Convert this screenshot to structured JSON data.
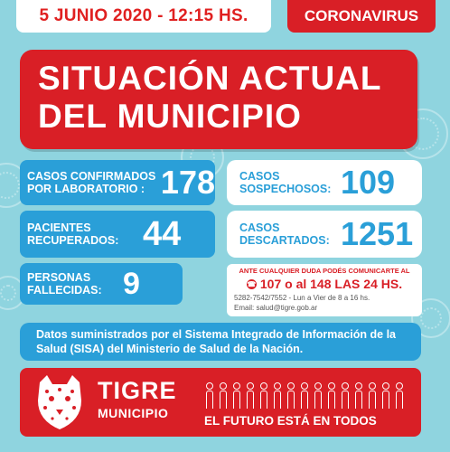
{
  "header": {
    "date": "5 JUNIO 2020 - 12:15 HS.",
    "topic": "CORONAVIRUS"
  },
  "title": {
    "line1": "SITUACIÓN ACTUAL",
    "line2": "DEL MUNICIPIO"
  },
  "stats": {
    "confirmados": {
      "label": "CASOS CONFIRMADOS\nPOR LABORATORIO :",
      "value": "178"
    },
    "recuperados": {
      "label": "PACIENTES\nRECUPERADOS:",
      "value": "44"
    },
    "fallecidas": {
      "label": "PERSONAS\nFALLECIDAS:",
      "value": "9"
    },
    "sospechosos": {
      "label": "CASOS\nSOSPECHOSOS:",
      "value": "109"
    },
    "descartados": {
      "label": "CASOS\nDESCARTADOS:",
      "value": "1251"
    }
  },
  "info": {
    "intro": "ANTE CUALQUIER DUDA PODÉS COMUNICARTE AL",
    "phones": "107 o al 148 LAS 24 HS.",
    "alt_phone": "5282-7542/7552 - Lun a Vier de 8 a 16 hs.",
    "email": "Email: salud@tigre.gob.ar"
  },
  "source": "Datos suministrados por el Sistema Integrado de Información de la Salud (SISA) del Ministerio de Salud de la Nación.",
  "footer": {
    "brand": "TIGRE",
    "sub": "MUNICIPIO",
    "tagline_prefix": "EL FUTURO ESTÁ EN ",
    "tagline_emphasis": "TODOS"
  },
  "colors": {
    "background": "#8fd4df",
    "red": "#d91f26",
    "blue": "#2a9fd8",
    "white": "#ffffff"
  }
}
